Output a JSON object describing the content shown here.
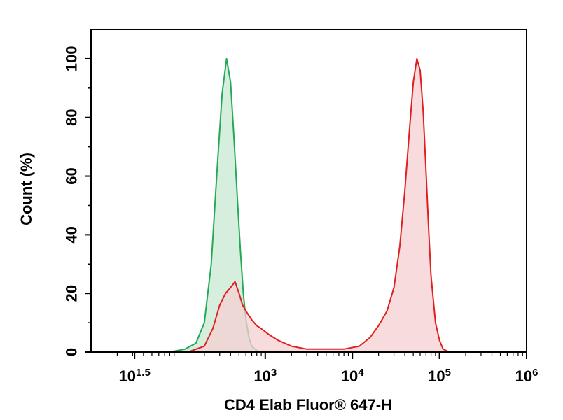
{
  "chart_data": {
    "type": "area",
    "title": "",
    "xlabel": "CD4 Elab Fluor® 647-H",
    "ylabel": "Count (%)",
    "x_scale": "log",
    "xlim": [
      10,
      1000000
    ],
    "ylim": [
      0,
      110
    ],
    "x_ticks": [
      {
        "value": 31.6,
        "base": "10",
        "exp": "1.5"
      },
      {
        "value": 1000,
        "base": "10",
        "exp": "3"
      },
      {
        "value": 10000,
        "base": "10",
        "exp": "4"
      },
      {
        "value": 100000,
        "base": "10",
        "exp": "5"
      },
      {
        "value": 1000000,
        "base": "10",
        "exp": "6"
      }
    ],
    "y_ticks": [
      0,
      20,
      40,
      60,
      80,
      100
    ],
    "series": [
      {
        "color": "#22aa55",
        "fill": "#c8e8d2",
        "x": [
          80,
          120,
          160,
          200,
          240,
          280,
          320,
          360,
          400,
          440,
          480,
          520,
          560,
          600,
          650,
          700,
          760,
          850
        ],
        "y": [
          0,
          1,
          3,
          10,
          30,
          62,
          88,
          100,
          92,
          72,
          52,
          34,
          20,
          11,
          5,
          2,
          1,
          0
        ]
      },
      {
        "color": "#e02020",
        "fill": "#f6d0d2",
        "x": [
          130,
          200,
          250,
          300,
          350,
          400,
          450,
          500,
          550,
          600,
          700,
          800,
          900,
          1100,
          1400,
          2000,
          3000,
          5000,
          8000,
          12000,
          16000,
          20000,
          25000,
          30000,
          35000,
          40000,
          45000,
          50000,
          55000,
          60000,
          65000,
          70000,
          75000,
          80000,
          90000,
          100000,
          110000,
          130000
        ],
        "y": [
          0,
          2,
          8,
          16,
          20,
          22,
          24,
          20,
          16,
          14,
          11,
          9,
          8,
          6,
          4,
          2,
          1,
          1,
          1,
          2,
          5,
          9,
          14,
          22,
          36,
          55,
          75,
          92,
          100,
          96,
          82,
          62,
          42,
          26,
          10,
          4,
          1,
          0
        ]
      }
    ]
  }
}
